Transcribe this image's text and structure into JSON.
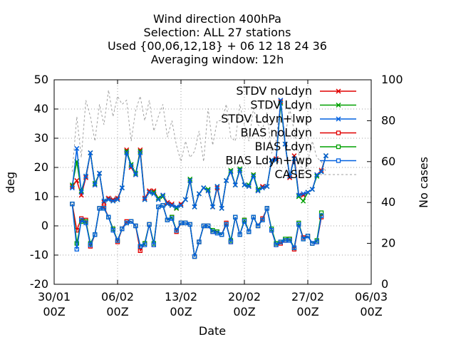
{
  "chart_data": {
    "type": "line",
    "title": [
      "Wind direction 400hPa",
      "Selection: ALL      27 stations",
      "Used {00,06,12,18} + 06 12 18 24 36",
      "Averaging window: 12h"
    ],
    "xlabel": "Date",
    "ylabel": "deg",
    "y2label": "No cases",
    "ylim": [
      -20,
      50
    ],
    "y2lim": [
      0,
      100
    ],
    "xlim": [
      0,
      35
    ],
    "yticks": [
      "-20",
      "-10",
      "0",
      "10",
      "20",
      "30",
      "40",
      "50"
    ],
    "y2ticks": [
      "0",
      "20",
      "40",
      "60",
      "80",
      "100"
    ],
    "xticks": [
      {
        "day": 0,
        "line1": "30/01",
        "line2": "00Z"
      },
      {
        "day": 7,
        "line1": "06/02",
        "line2": "00Z"
      },
      {
        "day": 14,
        "line1": "13/02",
        "line2": "00Z"
      },
      {
        "day": 21,
        "line1": "20/02",
        "line2": "00Z"
      },
      {
        "day": 28,
        "line1": "27/02",
        "line2": "00Z"
      },
      {
        "day": 35,
        "line1": "06/03",
        "line2": "00Z"
      }
    ],
    "grid": true,
    "legend_position": "top-right",
    "series": [
      {
        "name": "STDV noLdyn",
        "color": "#e00000",
        "marker": "x",
        "axis": "y",
        "values": [
          13.5,
          15.5,
          10.5,
          16.5,
          25,
          14,
          18,
          8,
          9.5,
          9,
          9.5,
          13,
          26,
          20,
          17.5,
          26,
          9.5,
          12,
          12,
          9.5,
          10.5,
          8,
          7.5,
          6,
          7.5,
          9,
          15.5,
          6.5,
          11,
          13,
          12,
          6.5,
          13,
          6,
          15.5,
          18.5,
          14,
          19,
          14,
          13.5,
          17.5,
          12,
          13.5,
          13.5,
          22.5,
          23,
          42.5,
          28,
          16.5,
          24,
          10.5,
          10.5,
          11.5,
          12.5,
          17.5,
          19,
          24
        ]
      },
      {
        "name": "STDV Ldyn",
        "color": "#00a000",
        "marker": "x",
        "axis": "y",
        "values": [
          14,
          22,
          12,
          17,
          25,
          14.5,
          18,
          8.5,
          9,
          8.5,
          9,
          13,
          25.5,
          21,
          18,
          25.5,
          9,
          11.5,
          11.5,
          9.5,
          10,
          7.5,
          7,
          6,
          7,
          9,
          16,
          6.5,
          11,
          13,
          12.5,
          6.5,
          13.5,
          6,
          15.5,
          19,
          14,
          19.5,
          14,
          14,
          17.5,
          12.5,
          13,
          13.5,
          22.5,
          22.5,
          42,
          28,
          17,
          23,
          10,
          8.5,
          11.5,
          12.5,
          17,
          18.5,
          24
        ]
      },
      {
        "name": "STDV Ldyn+lwp",
        "color": "#0060e0",
        "marker": "x",
        "axis": "y",
        "values": [
          13,
          26.5,
          11.5,
          17,
          25,
          14,
          18,
          8.5,
          9,
          8.5,
          9,
          13,
          25,
          20.5,
          17.5,
          25,
          9,
          11.5,
          11,
          9,
          10.5,
          7.5,
          7,
          6.5,
          7,
          9,
          15.5,
          6.5,
          11,
          13,
          12,
          6.5,
          13.5,
          6,
          15.5,
          18.5,
          14,
          19,
          14,
          13.5,
          17,
          12,
          13,
          13.5,
          22.5,
          22.5,
          43,
          28,
          17,
          23,
          10.5,
          11,
          11.5,
          12.5,
          17.5,
          18.5,
          24
        ]
      },
      {
        "name": "BIAS noLdyn",
        "color": "#e00000",
        "marker": "square",
        "axis": "y",
        "values": [
          7.5,
          -1.5,
          2.5,
          2,
          -7,
          -3,
          6,
          6.5,
          3,
          -1,
          -5.5,
          -1,
          1.5,
          1.5,
          0,
          -8.5,
          -6,
          0.5,
          -6.5,
          6.5,
          7,
          2,
          3,
          -2,
          1,
          1,
          0.5,
          -10.5,
          -5.5,
          0,
          0,
          -2,
          -2,
          -3,
          1,
          -5.5,
          3,
          -3,
          2,
          -2,
          3,
          0,
          2.5,
          6,
          -1.5,
          -6.5,
          -6,
          -5,
          -4.5,
          -8,
          0.5,
          -4,
          -3.5,
          -6,
          -5.5,
          3
        ]
      },
      {
        "name": "BIAS Ldyn",
        "color": "#00a000",
        "marker": "square",
        "axis": "y",
        "values": [
          7.5,
          -6,
          1.5,
          1.5,
          -6,
          -3,
          6,
          6,
          3,
          -1,
          -5,
          -1,
          1,
          1.5,
          0,
          -7,
          -6,
          0.5,
          -6,
          6.5,
          7,
          2,
          3,
          -1.5,
          1,
          1,
          0.5,
          -10.5,
          -5.5,
          0,
          0,
          -1.5,
          -2,
          -3,
          0.5,
          -5,
          3,
          -3,
          2,
          -2,
          3,
          0,
          2,
          6,
          -1,
          -6,
          -5.5,
          -4.5,
          -4.5,
          -7.5,
          1,
          -4.5,
          -3.5,
          -6,
          -5,
          4.5
        ]
      },
      {
        "name": "BIAS Ldyn+lwp",
        "color": "#0060e0",
        "marker": "square",
        "axis": "y",
        "values": [
          7.5,
          -8,
          2,
          1,
          -6.5,
          -3,
          6,
          6,
          3,
          -1.5,
          -5,
          -1,
          1,
          1.5,
          0,
          -7,
          -6.5,
          0.5,
          -6.5,
          6.5,
          7,
          2,
          2.5,
          -1.5,
          1,
          1,
          0.5,
          -10.5,
          -5.5,
          0,
          0,
          -2,
          -2.5,
          -3,
          0.5,
          -5.5,
          3,
          -3,
          1.5,
          -2,
          3,
          0,
          2,
          6,
          -1.5,
          -6.5,
          -5.5,
          -5,
          -5,
          -7.5,
          0.5,
          -4.5,
          -3.5,
          -6,
          -5.5,
          3.5
        ]
      },
      {
        "name": "CASES",
        "color": "#a0a0a0",
        "marker": "none",
        "axis": "y2",
        "dash": true,
        "values": [
          55,
          82,
          62,
          90,
          82,
          70,
          88,
          78,
          95,
          82,
          92,
          88,
          90,
          70,
          85,
          92,
          80,
          90,
          75,
          82,
          88,
          72,
          80,
          68,
          60,
          70,
          62,
          65,
          75,
          60,
          86,
          68,
          80,
          80,
          88,
          72,
          70,
          88,
          78,
          70,
          86,
          78,
          76,
          84,
          64,
          70,
          90,
          72,
          86,
          75,
          64,
          52,
          60,
          70,
          62,
          60,
          55
        ]
      }
    ],
    "x_start_day": 2,
    "x_step_day": 0.5
  }
}
